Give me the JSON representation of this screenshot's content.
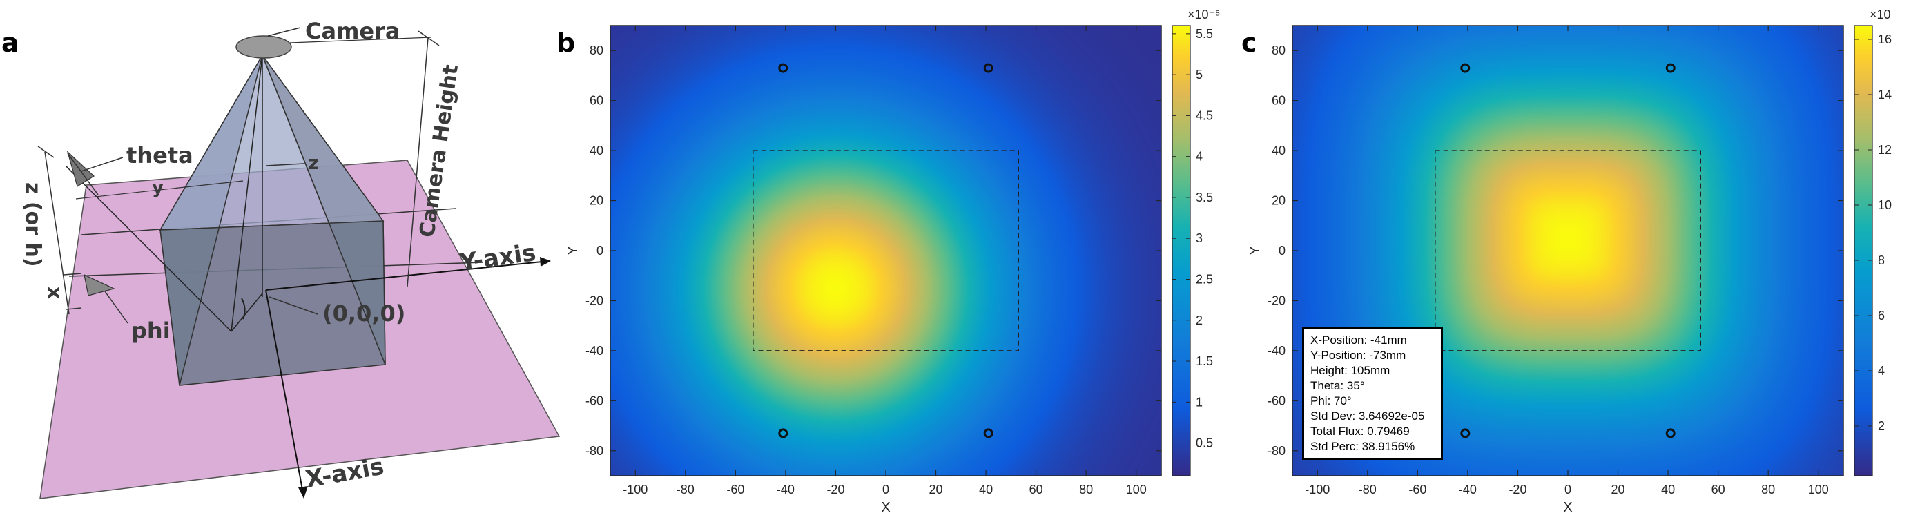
{
  "panels": {
    "a": "a",
    "b": "b",
    "c": "c"
  },
  "diagram": {
    "labels": {
      "camera": "Camera",
      "theta": "theta",
      "y": "y",
      "z": "z",
      "camera_height": "Camera Height",
      "z_or_h": "z (or h)",
      "x": "x",
      "y_axis": "Y-axis",
      "phi": "phi",
      "origin": "(0,0,0)",
      "x_axis": "X-axis"
    },
    "colors": {
      "plane": "#dbaed8",
      "pyramid": "#7f8fa8",
      "camera": "#9a9a9a"
    }
  },
  "info_box": {
    "lines": [
      "X-Position:  -41mm",
      "Y-Position:  -73mm",
      "Height:  105mm",
      "Theta:  35°",
      "Phi:  70°",
      "Std Dev: 3.64692e-05",
      "Total Flux: 0.79469",
      "Std Perc: 38.9156%"
    ]
  },
  "chart_data": [
    {
      "panel": "b",
      "type": "heatmap",
      "xlabel": "X",
      "ylabel": "Y",
      "xlim": [
        -110,
        110
      ],
      "ylim": [
        -90,
        90
      ],
      "xticks": [
        -100,
        -80,
        -60,
        -40,
        -20,
        0,
        20,
        40,
        60,
        80,
        100
      ],
      "yticks": [
        -80,
        -60,
        -40,
        -20,
        0,
        20,
        40,
        60,
        80
      ],
      "colormap": "parula",
      "peak": {
        "x": -20,
        "y": -15,
        "value": 5.6e-05
      },
      "clim": [
        1e-06,
        5.6e-05
      ],
      "colorbar": {
        "exponent_label": "×10⁻⁵",
        "ticks": [
          0.5,
          1,
          1.5,
          2,
          2.5,
          3,
          3.5,
          4,
          4.5,
          5,
          5.5
        ],
        "tick_labels": [
          "0.5",
          "1",
          "1.5",
          "2",
          "2.5",
          "3",
          "3.5",
          "4",
          "4.5",
          "5",
          "5.5"
        ]
      },
      "target_rect": {
        "x": [
          -53,
          53
        ],
        "y": [
          -40,
          40
        ]
      },
      "markers": [
        {
          "x": -41,
          "y": 73
        },
        {
          "x": 41,
          "y": 73
        },
        {
          "x": -41,
          "y": -73
        },
        {
          "x": 41,
          "y": -73
        }
      ]
    },
    {
      "panel": "c",
      "type": "heatmap",
      "xlabel": "X",
      "ylabel": "Y",
      "xlim": [
        -110,
        110
      ],
      "ylim": [
        -90,
        90
      ],
      "xticks": [
        -100,
        -80,
        -60,
        -40,
        -20,
        0,
        20,
        40,
        60,
        80,
        100
      ],
      "yticks": [
        -80,
        -60,
        -40,
        -20,
        0,
        20,
        40,
        60,
        80
      ],
      "colormap": "parula",
      "peak": {
        "x": 0,
        "y": 5,
        "value": 16.5
      },
      "clim": [
        0.2,
        16.5
      ],
      "colorbar": {
        "exponent_label": "×10",
        "ticks": [
          2,
          4,
          6,
          8,
          10,
          12,
          14,
          16
        ],
        "tick_labels": [
          "2",
          "4",
          "6",
          "8",
          "10",
          "12",
          "14",
          "16"
        ]
      },
      "target_rect": {
        "x": [
          -53,
          53
        ],
        "y": [
          -40,
          40
        ]
      },
      "markers": [
        {
          "x": -41,
          "y": 73
        },
        {
          "x": 41,
          "y": 73
        },
        {
          "x": -41,
          "y": -73
        },
        {
          "x": 41,
          "y": -73
        }
      ]
    }
  ]
}
